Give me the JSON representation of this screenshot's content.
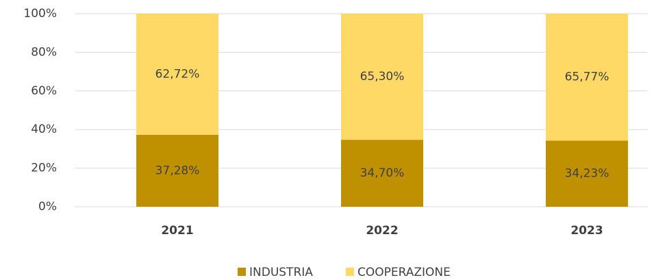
{
  "chart_data": {
    "type": "stacked_bar",
    "categories": [
      "2021",
      "2022",
      "2023"
    ],
    "series": [
      {
        "name": "INDUSTRIA",
        "color": "#bf9000",
        "values": [
          37.28,
          34.7,
          34.23
        ],
        "value_labels": [
          "37,28%",
          "34,70%",
          "34,23%"
        ]
      },
      {
        "name": "COOPERAZIONE",
        "color": "#ffd966",
        "values": [
          62.72,
          65.3,
          65.77
        ],
        "value_labels": [
          "62,72%",
          "65,30%",
          "65,77%"
        ]
      }
    ],
    "ylim": [
      0,
      100
    ],
    "yticks": [
      {
        "value": 0,
        "label": "0%"
      },
      {
        "value": 20,
        "label": "20%"
      },
      {
        "value": 40,
        "label": "40%"
      },
      {
        "value": 60,
        "label": "60%"
      },
      {
        "value": 80,
        "label": "80%"
      },
      {
        "value": 100,
        "label": "100%"
      }
    ],
    "grid": true,
    "legend": "bottom"
  }
}
